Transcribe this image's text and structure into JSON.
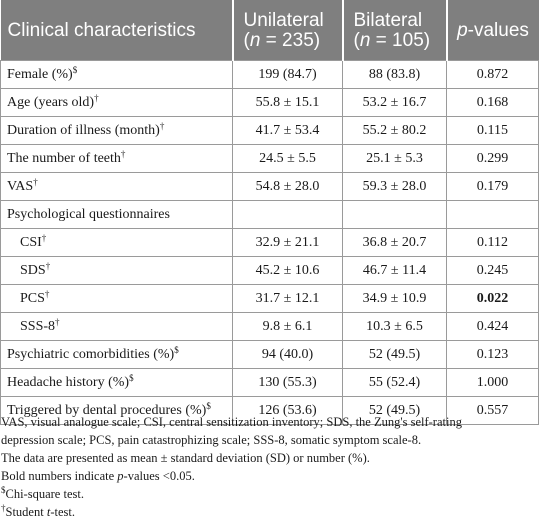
{
  "header": {
    "col1": "Clinical characteristics",
    "col2_line1": "Unilateral",
    "col2_n": "n",
    "col2_line2": " = 235)",
    "col3_line1": "Bilateral",
    "col3_n": "n",
    "col3_line2": " = 105)",
    "col4_p": "p",
    "col4_rest": "-values"
  },
  "rows": {
    "female": {
      "label": "Female (%)",
      "mark": "$",
      "u": "199 (84.7)",
      "b": "88 (83.8)",
      "p": "0.872"
    },
    "age": {
      "label": "Age (years old)",
      "mark": "†",
      "u": "55.8 ± 15.1",
      "b": "53.2 ± 16.7",
      "p": "0.168"
    },
    "duration": {
      "label": "Duration of illness (month)",
      "mark": "†",
      "u": "41.7 ± 53.4",
      "b": "55.2 ± 80.2",
      "p": "0.115"
    },
    "teeth": {
      "label": "The number of teeth",
      "mark": "†",
      "u": "24.5 ± 5.5",
      "b": "25.1 ± 5.3",
      "p": "0.299"
    },
    "vas": {
      "label": "VAS",
      "mark": "†",
      "u": "54.8 ± 28.0",
      "b": "59.3 ± 28.0",
      "p": "0.179"
    },
    "psych": {
      "label": "Psychological questionnaires"
    },
    "csi": {
      "label": "CSI",
      "mark": "†",
      "u": "32.9 ± 21.1",
      "b": "36.8 ± 20.7",
      "p": "0.112"
    },
    "sds": {
      "label": "SDS",
      "mark": "†",
      "u": "45.2 ± 10.6",
      "b": "46.7 ± 11.4",
      "p": "0.245"
    },
    "pcs": {
      "label": "PCS",
      "mark": "†",
      "u": "31.7 ± 12.1",
      "b": "34.9 ± 10.9",
      "p": "0.022"
    },
    "sss": {
      "label": "SSS-8",
      "mark": "†",
      "u": "9.8 ± 6.1",
      "b": "10.3 ± 6.5",
      "p": "0.424"
    },
    "comorb": {
      "label": "Psychiatric comorbidities (%)",
      "mark": "$",
      "u": "94 (40.0)",
      "b": "52 (49.5)",
      "p": "0.123"
    },
    "headache": {
      "label": "Headache history (%)",
      "mark": "$",
      "u": "130 (55.3)",
      "b": "55 (52.4)",
      "p": "1.000"
    },
    "dental": {
      "label": "Triggered by dental procedures (%)",
      "mark": "$",
      "u": "126 (53.6)",
      "b": "52 (49.5)",
      "p": "0.557"
    }
  },
  "notes": {
    "abbrev_1": "VAS, visual analogue scale; CSI, central sensitization inventory; SDS, the Zung's self-rating",
    "abbrev_2": "depression scale; PCS, pain catastrophizing scale; SSS-8, somatic symptom scale-8.",
    "data_note": "The data are presented as mean ± standard deviation (SD) or number (%).",
    "bold_pre": "Bold numbers indicate ",
    "bold_p": "p",
    "bold_post": "-values <0.05.",
    "chi_mark": "$",
    "chi_text": "Chi-square test.",
    "t_mark": "†",
    "t_pre": "Student ",
    "t_t": "t",
    "t_post": "-test."
  }
}
